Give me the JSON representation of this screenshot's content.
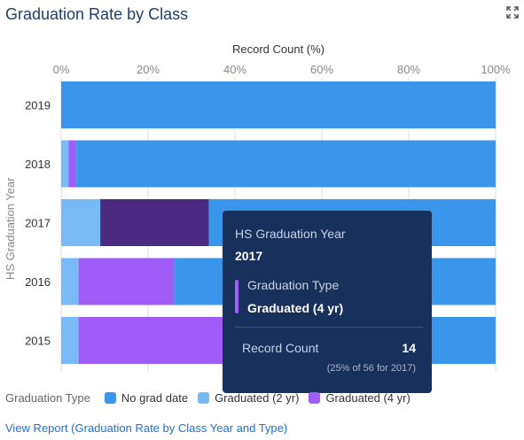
{
  "title": "Graduation Rate by Class",
  "icons": {
    "expand": "expand-icon"
  },
  "colors": {
    "no_grad_date": "#3a96ea",
    "graduated_2yr": "#78baf5",
    "graduated_4yr": "#a05cf6",
    "graduated_4yr_highlight": "#4b2a82",
    "tooltip_bg": "#17305c",
    "grid": "#dddddd",
    "axis_text": "#888888"
  },
  "chart_data": {
    "type": "bar",
    "orientation": "horizontal",
    "stacked": true,
    "xlabel": "Record Count (%)",
    "ylabel": "HS Graduation Year",
    "xlim": [
      0,
      100
    ],
    "xticks": [
      "0%",
      "20%",
      "40%",
      "60%",
      "80%",
      "100%"
    ],
    "categories": [
      "2019",
      "2018",
      "2017",
      "2016",
      "2015"
    ],
    "series": [
      {
        "name": "Graduated (2 yr)",
        "values": [
          0,
          1.7,
          9,
          4,
          4
        ]
      },
      {
        "name": "Graduated (4 yr)",
        "values": [
          0,
          1.8,
          25,
          22,
          34
        ]
      },
      {
        "name": "No grad date",
        "values": [
          100,
          96.5,
          66,
          74,
          62
        ]
      }
    ],
    "highlight": {
      "category": "2017",
      "series": "Graduated (4 yr)"
    },
    "legend_position": "bottom-left",
    "grid": true
  },
  "tooltip": {
    "year_label": "HS Graduation Year",
    "year_value": "2017",
    "type_label": "Graduation Type",
    "type_value": "Graduated (4 yr)",
    "count_label": "Record Count",
    "count_value": "14",
    "note": "(25% of 56 for 2017)"
  },
  "legend": {
    "title": "Graduation Type",
    "items": [
      {
        "label": "No grad date",
        "color": "#3a96ea"
      },
      {
        "label": "Graduated (2 yr)",
        "color": "#78baf5"
      },
      {
        "label": "Graduated (4 yr)",
        "color": "#a05cf6"
      }
    ]
  },
  "report_link": "View Report (Graduation Rate by Class Year and Type)"
}
